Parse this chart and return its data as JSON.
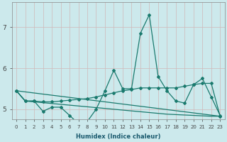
{
  "xlabel": "Humidex (Indice chaleur)",
  "bg_color": "#cce9ec",
  "grid_color": "#b0d8dc",
  "line_color": "#1a7a6e",
  "xlim": [
    -0.5,
    23.5
  ],
  "ylim": [
    4.75,
    7.6
  ],
  "yticks": [
    5,
    6,
    7
  ],
  "xticks": [
    0,
    1,
    2,
    3,
    4,
    5,
    6,
    7,
    8,
    9,
    10,
    11,
    12,
    13,
    14,
    15,
    16,
    17,
    18,
    19,
    20,
    21,
    22,
    23
  ],
  "line1_x": [
    0,
    1,
    2,
    3,
    4,
    5,
    6,
    7,
    8,
    9,
    10,
    11,
    12,
    13,
    14,
    15,
    16,
    17,
    18,
    19,
    20,
    21,
    22,
    23
  ],
  "line1_y": [
    5.45,
    5.2,
    5.2,
    4.95,
    5.05,
    5.05,
    4.85,
    4.65,
    4.7,
    5.0,
    5.45,
    5.95,
    5.5,
    5.5,
    6.85,
    7.3,
    5.8,
    5.45,
    5.2,
    5.15,
    5.6,
    5.75,
    5.3,
    4.85
  ],
  "line2_x": [
    0,
    1,
    2,
    3,
    4,
    5,
    6,
    7,
    8,
    9,
    10,
    11,
    12,
    13,
    14,
    15,
    16,
    17,
    18,
    19,
    20,
    21,
    22,
    23
  ],
  "line2_y": [
    5.45,
    5.2,
    5.2,
    5.18,
    5.18,
    5.2,
    5.22,
    5.24,
    5.26,
    5.3,
    5.35,
    5.4,
    5.45,
    5.48,
    5.52,
    5.52,
    5.52,
    5.52,
    5.52,
    5.56,
    5.6,
    5.63,
    5.63,
    4.83
  ],
  "line3_x": [
    0,
    23
  ],
  "line3_y": [
    5.45,
    4.83
  ],
  "line4_x": [
    0,
    1,
    2,
    3,
    4,
    5,
    6,
    7,
    8,
    9,
    10,
    11,
    12,
    13,
    14,
    15,
    16,
    17,
    18,
    19,
    20,
    21,
    22,
    23
  ],
  "line4_y": [
    5.45,
    5.2,
    5.18,
    5.16,
    5.14,
    5.12,
    5.1,
    5.08,
    5.06,
    5.04,
    5.02,
    5.0,
    4.98,
    4.96,
    4.94,
    4.92,
    4.9,
    4.88,
    4.87,
    4.86,
    4.85,
    4.84,
    4.83,
    4.83
  ]
}
